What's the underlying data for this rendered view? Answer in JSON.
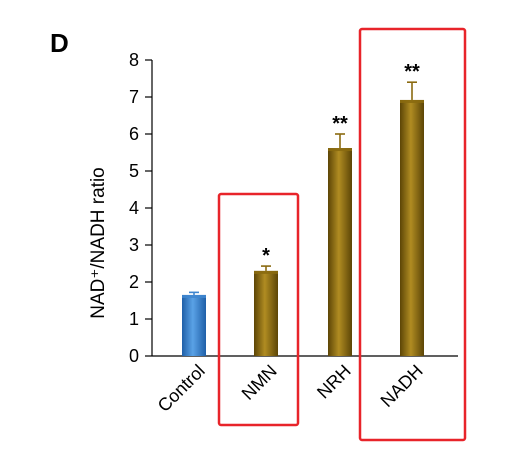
{
  "panel_label": "D",
  "chart_data": {
    "type": "bar",
    "categories": [
      "Control",
      "NMN",
      "NRH",
      "NADH"
    ],
    "values": [
      1.65,
      2.3,
      5.62,
      6.92
    ],
    "errors": [
      0.07,
      0.13,
      0.38,
      0.48
    ],
    "significance": [
      "",
      "*",
      "**",
      "**"
    ],
    "colors": [
      "#3f86cf",
      "#8a6a10",
      "#8a6a10",
      "#8a6a10"
    ],
    "ylabel": "NAD⁺/NADH ratio",
    "ylim": [
      0,
      8
    ],
    "yticks": [
      0,
      1,
      2,
      3,
      4,
      5,
      6,
      7,
      8
    ],
    "highlight_color": "#e8242a",
    "highlighted": [
      "NMN",
      "NADH"
    ]
  }
}
